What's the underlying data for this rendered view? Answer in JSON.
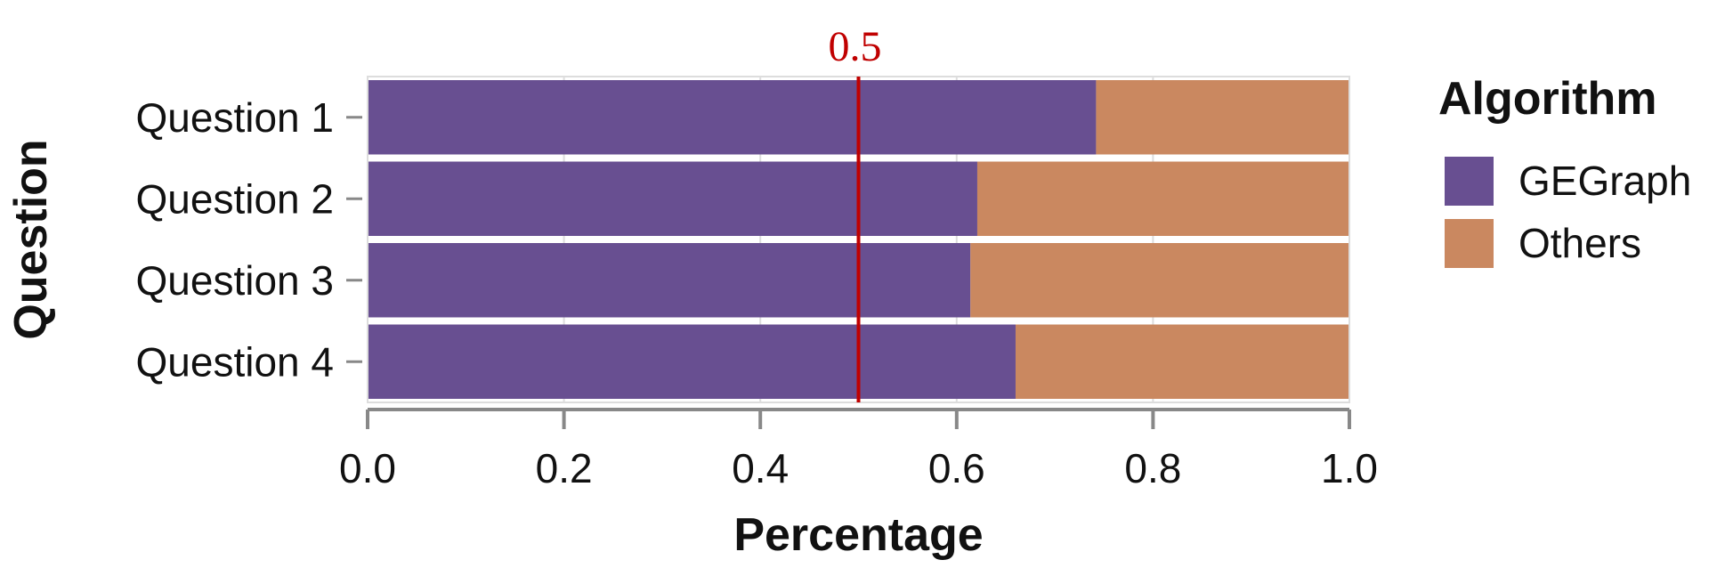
{
  "chart_data": {
    "type": "bar",
    "orientation": "horizontal",
    "stacked": true,
    "categories": [
      "Question 1",
      "Question 2",
      "Question 3",
      "Question 4"
    ],
    "series": [
      {
        "name": "GEGraph",
        "values": [
          0.742,
          0.621,
          0.614,
          0.66
        ],
        "color": "#684f91"
      },
      {
        "name": "Others",
        "values": [
          0.258,
          0.379,
          0.386,
          0.34
        ],
        "color": "#ca8860"
      }
    ],
    "xlabel": "Percentage",
    "ylabel": "Question",
    "xlim": [
      0,
      1
    ],
    "xticks": [
      "0.0",
      "0.2",
      "0.4",
      "0.6",
      "0.8",
      "1.0"
    ],
    "legend": {
      "title": "Algorithm",
      "position": "right"
    },
    "reference_line": {
      "value": 0.5,
      "label": "0.5",
      "color": "#c00000"
    },
    "grid": true
  }
}
